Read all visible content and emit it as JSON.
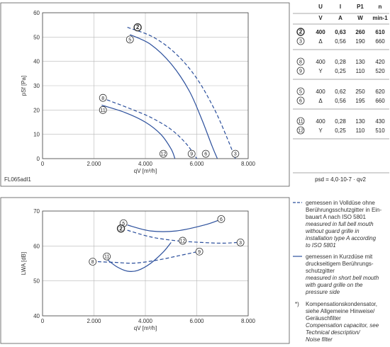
{
  "colors": {
    "curve": "#2b4f9c",
    "grid": "#b8b8b8",
    "axis": "#444444"
  },
  "chart_data": [
    {
      "type": "line",
      "xlabel": "qV [m³/h]",
      "ylabel": "pSf [Pa]",
      "xlim": [
        0,
        8000
      ],
      "ylim": [
        0,
        60
      ],
      "x_ticks": [
        "0",
        "2.000",
        "4.000",
        "6.000",
        "8.000"
      ],
      "y_ticks": [
        "0",
        "10",
        "20",
        "30",
        "40",
        "50",
        "60"
      ],
      "grid": true,
      "footnote": "FL065adl1",
      "series": [
        {
          "name": "2",
          "dashed": true,
          "label_at": [
            3700,
            54
          ],
          "end_label": [
            7500,
            2
          ],
          "points": [
            [
              3300,
              54
            ],
            [
              4300,
              50
            ],
            [
              5200,
              43
            ],
            [
              6000,
              33
            ],
            [
              6700,
              20
            ],
            [
              7200,
              8
            ],
            [
              7500,
              0
            ]
          ]
        },
        {
          "name": "5",
          "dashed": false,
          "label_at": [
            3400,
            49
          ],
          "points": [
            [
              3400,
              51
            ],
            [
              4200,
              47
            ],
            [
              5000,
              39
            ],
            [
              5700,
              28
            ],
            [
              6200,
              16
            ],
            [
              6600,
              5
            ],
            [
              6800,
              0
            ]
          ]
        },
        {
          "name": "3",
          "dashed": true,
          "label_at": [
            7500,
            2
          ],
          "points": []
        },
        {
          "name": "6",
          "dashed": false,
          "label_at": [
            6350,
            2
          ],
          "points": []
        },
        {
          "name": "8",
          "dashed": true,
          "label_at": [
            2350,
            25
          ],
          "points": [
            [
              2300,
              25
            ],
            [
              3300,
              21
            ],
            [
              4200,
              17
            ],
            [
              5000,
              12
            ],
            [
              5600,
              6
            ],
            [
              6000,
              0
            ]
          ]
        },
        {
          "name": "11",
          "dashed": false,
          "label_at": [
            2350,
            20
          ],
          "points": [
            [
              2300,
              22
            ],
            [
              3200,
              19
            ],
            [
              4000,
              15
            ],
            [
              4600,
              10
            ],
            [
              5000,
              4
            ],
            [
              5150,
              0
            ]
          ]
        },
        {
          "name": "12",
          "dashed": false,
          "label_at": [
            4700,
            2
          ],
          "points": []
        },
        {
          "name": "9",
          "dashed": true,
          "label_at": [
            5800,
            2
          ],
          "points": []
        }
      ]
    },
    {
      "type": "line",
      "xlabel": "qV [m³/h]",
      "ylabel": "LWA [dB]",
      "xlim": [
        0,
        8000
      ],
      "ylim": [
        40,
        70
      ],
      "x_ticks": [
        "0",
        "2.000",
        "4.000",
        "6.000",
        "8.000"
      ],
      "y_ticks": [
        "40",
        "50",
        "60",
        "70"
      ],
      "grid": true,
      "series": [
        {
          "name": "5",
          "dashed": false,
          "label_at": [
            3150,
            66.5
          ],
          "points": [
            [
              3300,
              66
            ],
            [
              4200,
              64.3
            ],
            [
              5200,
              64.3
            ],
            [
              6300,
              66
            ],
            [
              6900,
              67.5
            ]
          ]
        },
        {
          "name": "6",
          "dashed": false,
          "label_at": [
            6950,
            67.7
          ],
          "points": []
        },
        {
          "name": "2",
          "dashed": true,
          "label_at": [
            3050,
            65
          ],
          "points": [
            [
              3300,
              64.5
            ],
            [
              4200,
              62.6
            ],
            [
              5200,
              61.5
            ],
            [
              6200,
              61
            ],
            [
              7000,
              60.8
            ],
            [
              7600,
              61
            ]
          ]
        },
        {
          "name": "3",
          "dashed": true,
          "label_at": [
            7700,
            61
          ],
          "points": []
        },
        {
          "name": "8",
          "dashed": true,
          "label_at": [
            1950,
            55.5
          ],
          "points": [
            [
              2150,
              55.5
            ],
            [
              2800,
              55.3
            ],
            [
              3600,
              55.1
            ],
            [
              4500,
              56
            ],
            [
              5300,
              57.2
            ],
            [
              6050,
              58.4
            ]
          ]
        },
        {
          "name": "9",
          "dashed": false,
          "label_at": [
            6100,
            58.4
          ],
          "points": []
        },
        {
          "name": "11",
          "dashed": false,
          "label_at": [
            2500,
            57
          ],
          "points": [
            [
              2500,
              56.2
            ],
            [
              2900,
              54
            ],
            [
              3300,
              52.8
            ],
            [
              3700,
              53
            ],
            [
              4200,
              55
            ],
            [
              4700,
              58.3
            ],
            [
              5000,
              61
            ]
          ]
        },
        {
          "name": "12",
          "dashed": false,
          "label_at": [
            5450,
            61.5
          ],
          "points": []
        }
      ]
    }
  ],
  "table": {
    "headers": [
      "U",
      "I",
      "P1",
      "n"
    ],
    "units": [
      "V",
      "A",
      "W",
      "min-1"
    ],
    "groups": [
      {
        "rows": [
          {
            "curve": "2",
            "u": "400",
            "i": "0,63",
            "p": "260",
            "n": "610",
            "bold": true
          },
          {
            "curve": "3",
            "u": "Δ",
            "i": "0,56",
            "p": "190",
            "n": "660",
            "bold": false
          }
        ]
      },
      {
        "rows": [
          {
            "curve": "8",
            "u": "400",
            "i": "0,28",
            "p": "130",
            "n": "420",
            "bold": false
          },
          {
            "curve": "9",
            "u": "Y",
            "i": "0,25",
            "p": "110",
            "n": "520",
            "bold": false
          }
        ]
      },
      {
        "rows": [
          {
            "curve": "5",
            "u": "400",
            "i": "0,62",
            "p": "250",
            "n": "620",
            "bold": false
          },
          {
            "curve": "6",
            "u": "Δ",
            "i": "0,56",
            "p": "195",
            "n": "660",
            "bold": false
          }
        ]
      },
      {
        "rows": [
          {
            "curve": "11",
            "u": "400",
            "i": "0,28",
            "p": "130",
            "n": "430",
            "bold": false
          },
          {
            "curve": "12",
            "u": "Y",
            "i": "0,25",
            "p": "110",
            "n": "510",
            "bold": false
          }
        ]
      }
    ],
    "formula": "psd = 4,0·10-7 · qv2"
  },
  "legend": {
    "dashed": {
      "de": [
        "gemessen in Volldüse ohne",
        "Berührungsschutzgitter in Ein-",
        "bauart A nach ISO 5801"
      ],
      "en": [
        "measured in full bell mouth",
        "without guard grille in",
        "installation type A according",
        "to ISO 5801"
      ]
    },
    "solid": {
      "de": [
        "gemessen in Kurzdüse mit",
        "druckseitigem Berührungs-",
        "schutzgitter"
      ],
      "en": [
        "measured in short bell mouth",
        "with guard grille on the",
        "pressure side"
      ]
    },
    "note": {
      "mark": "*)",
      "de": [
        "Kompensationskondensator,",
        "siehe Allgemeine Hinweise/",
        "Geräuschfilter"
      ],
      "en": [
        "Compensation capacitor, see",
        "Technical description/",
        "Noise filter"
      ]
    }
  }
}
